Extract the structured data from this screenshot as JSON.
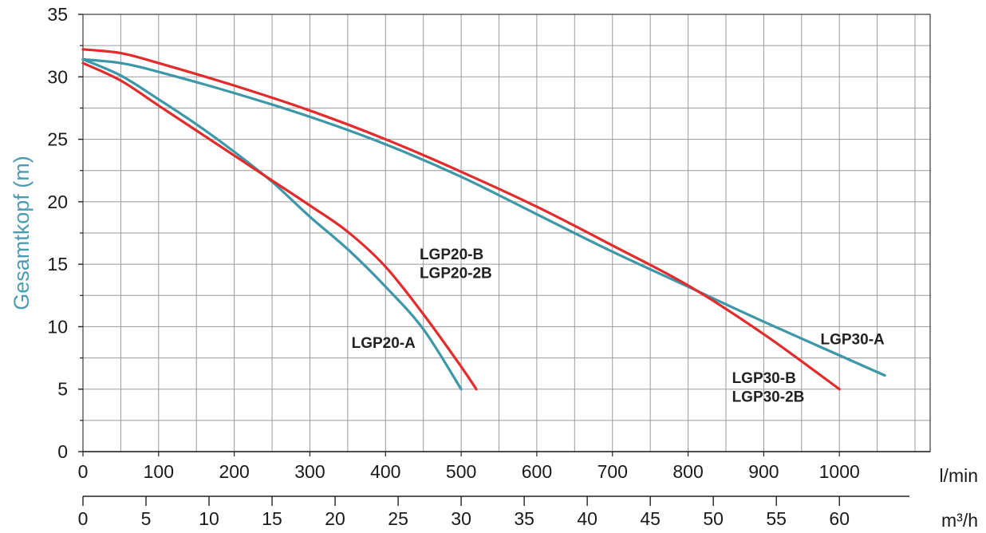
{
  "chart_data": {
    "type": "line",
    "title": "",
    "ylabel": "Gesamtkopf (m)",
    "x_unit": "l/min",
    "x2_unit": "m³/h",
    "xlim": [
      0,
      1120
    ],
    "ylim": [
      0,
      35
    ],
    "x_ticks": [
      0,
      100,
      200,
      300,
      400,
      500,
      600,
      700,
      800,
      900,
      1000
    ],
    "x2_ticks": [
      0,
      5,
      10,
      15,
      20,
      25,
      30,
      35,
      40,
      45,
      50,
      55,
      60
    ],
    "y_ticks": [
      0,
      5,
      10,
      15,
      20,
      25,
      30,
      35
    ],
    "grid": true,
    "colors": {
      "teal": "#3c97a9",
      "red": "#e32b2b",
      "ylabel": "#4a9cb3"
    },
    "series": [
      {
        "name": "LGP20-A",
        "color": "teal",
        "x": [
          0,
          50,
          100,
          150,
          200,
          250,
          300,
          350,
          400,
          450,
          500
        ],
        "y": [
          31.4,
          30.1,
          28.2,
          26.2,
          24.0,
          21.6,
          18.8,
          16.2,
          13.2,
          9.8,
          5.0
        ]
      },
      {
        "name": "LGP20-B / LGP20-2B",
        "color": "red",
        "x": [
          0,
          50,
          100,
          150,
          200,
          250,
          300,
          350,
          400,
          450,
          500,
          520
        ],
        "y": [
          31.1,
          29.7,
          27.7,
          25.7,
          23.7,
          21.7,
          19.7,
          17.6,
          14.8,
          11.0,
          6.8,
          5.0
        ]
      },
      {
        "name": "LGP30-A",
        "color": "teal",
        "x": [
          0,
          50,
          100,
          200,
          300,
          400,
          500,
          600,
          700,
          800,
          900,
          1060
        ],
        "y": [
          31.4,
          31.1,
          30.4,
          28.7,
          26.8,
          24.6,
          22.0,
          19.0,
          16.0,
          13.2,
          10.4,
          6.1
        ]
      },
      {
        "name": "LGP30-B / LGP30-2B",
        "color": "red",
        "x": [
          0,
          50,
          100,
          200,
          300,
          400,
          500,
          600,
          700,
          800,
          900,
          1000
        ],
        "y": [
          32.2,
          31.9,
          31.1,
          29.3,
          27.3,
          25.0,
          22.4,
          19.6,
          16.5,
          13.3,
          9.4,
          5.0
        ]
      }
    ],
    "annotations": [
      {
        "text": "LGP20-B",
        "x": 445,
        "y": 15.4
      },
      {
        "text": "LGP20-2B",
        "x": 445,
        "y": 13.9
      },
      {
        "text": "LGP20-A",
        "x": 355,
        "y": 8.3
      },
      {
        "text": "LGP30-B",
        "x": 858,
        "y": 5.5
      },
      {
        "text": "LGP30-2B",
        "x": 858,
        "y": 4.0
      },
      {
        "text": "LGP30-A",
        "x": 975,
        "y": 8.6
      }
    ]
  }
}
